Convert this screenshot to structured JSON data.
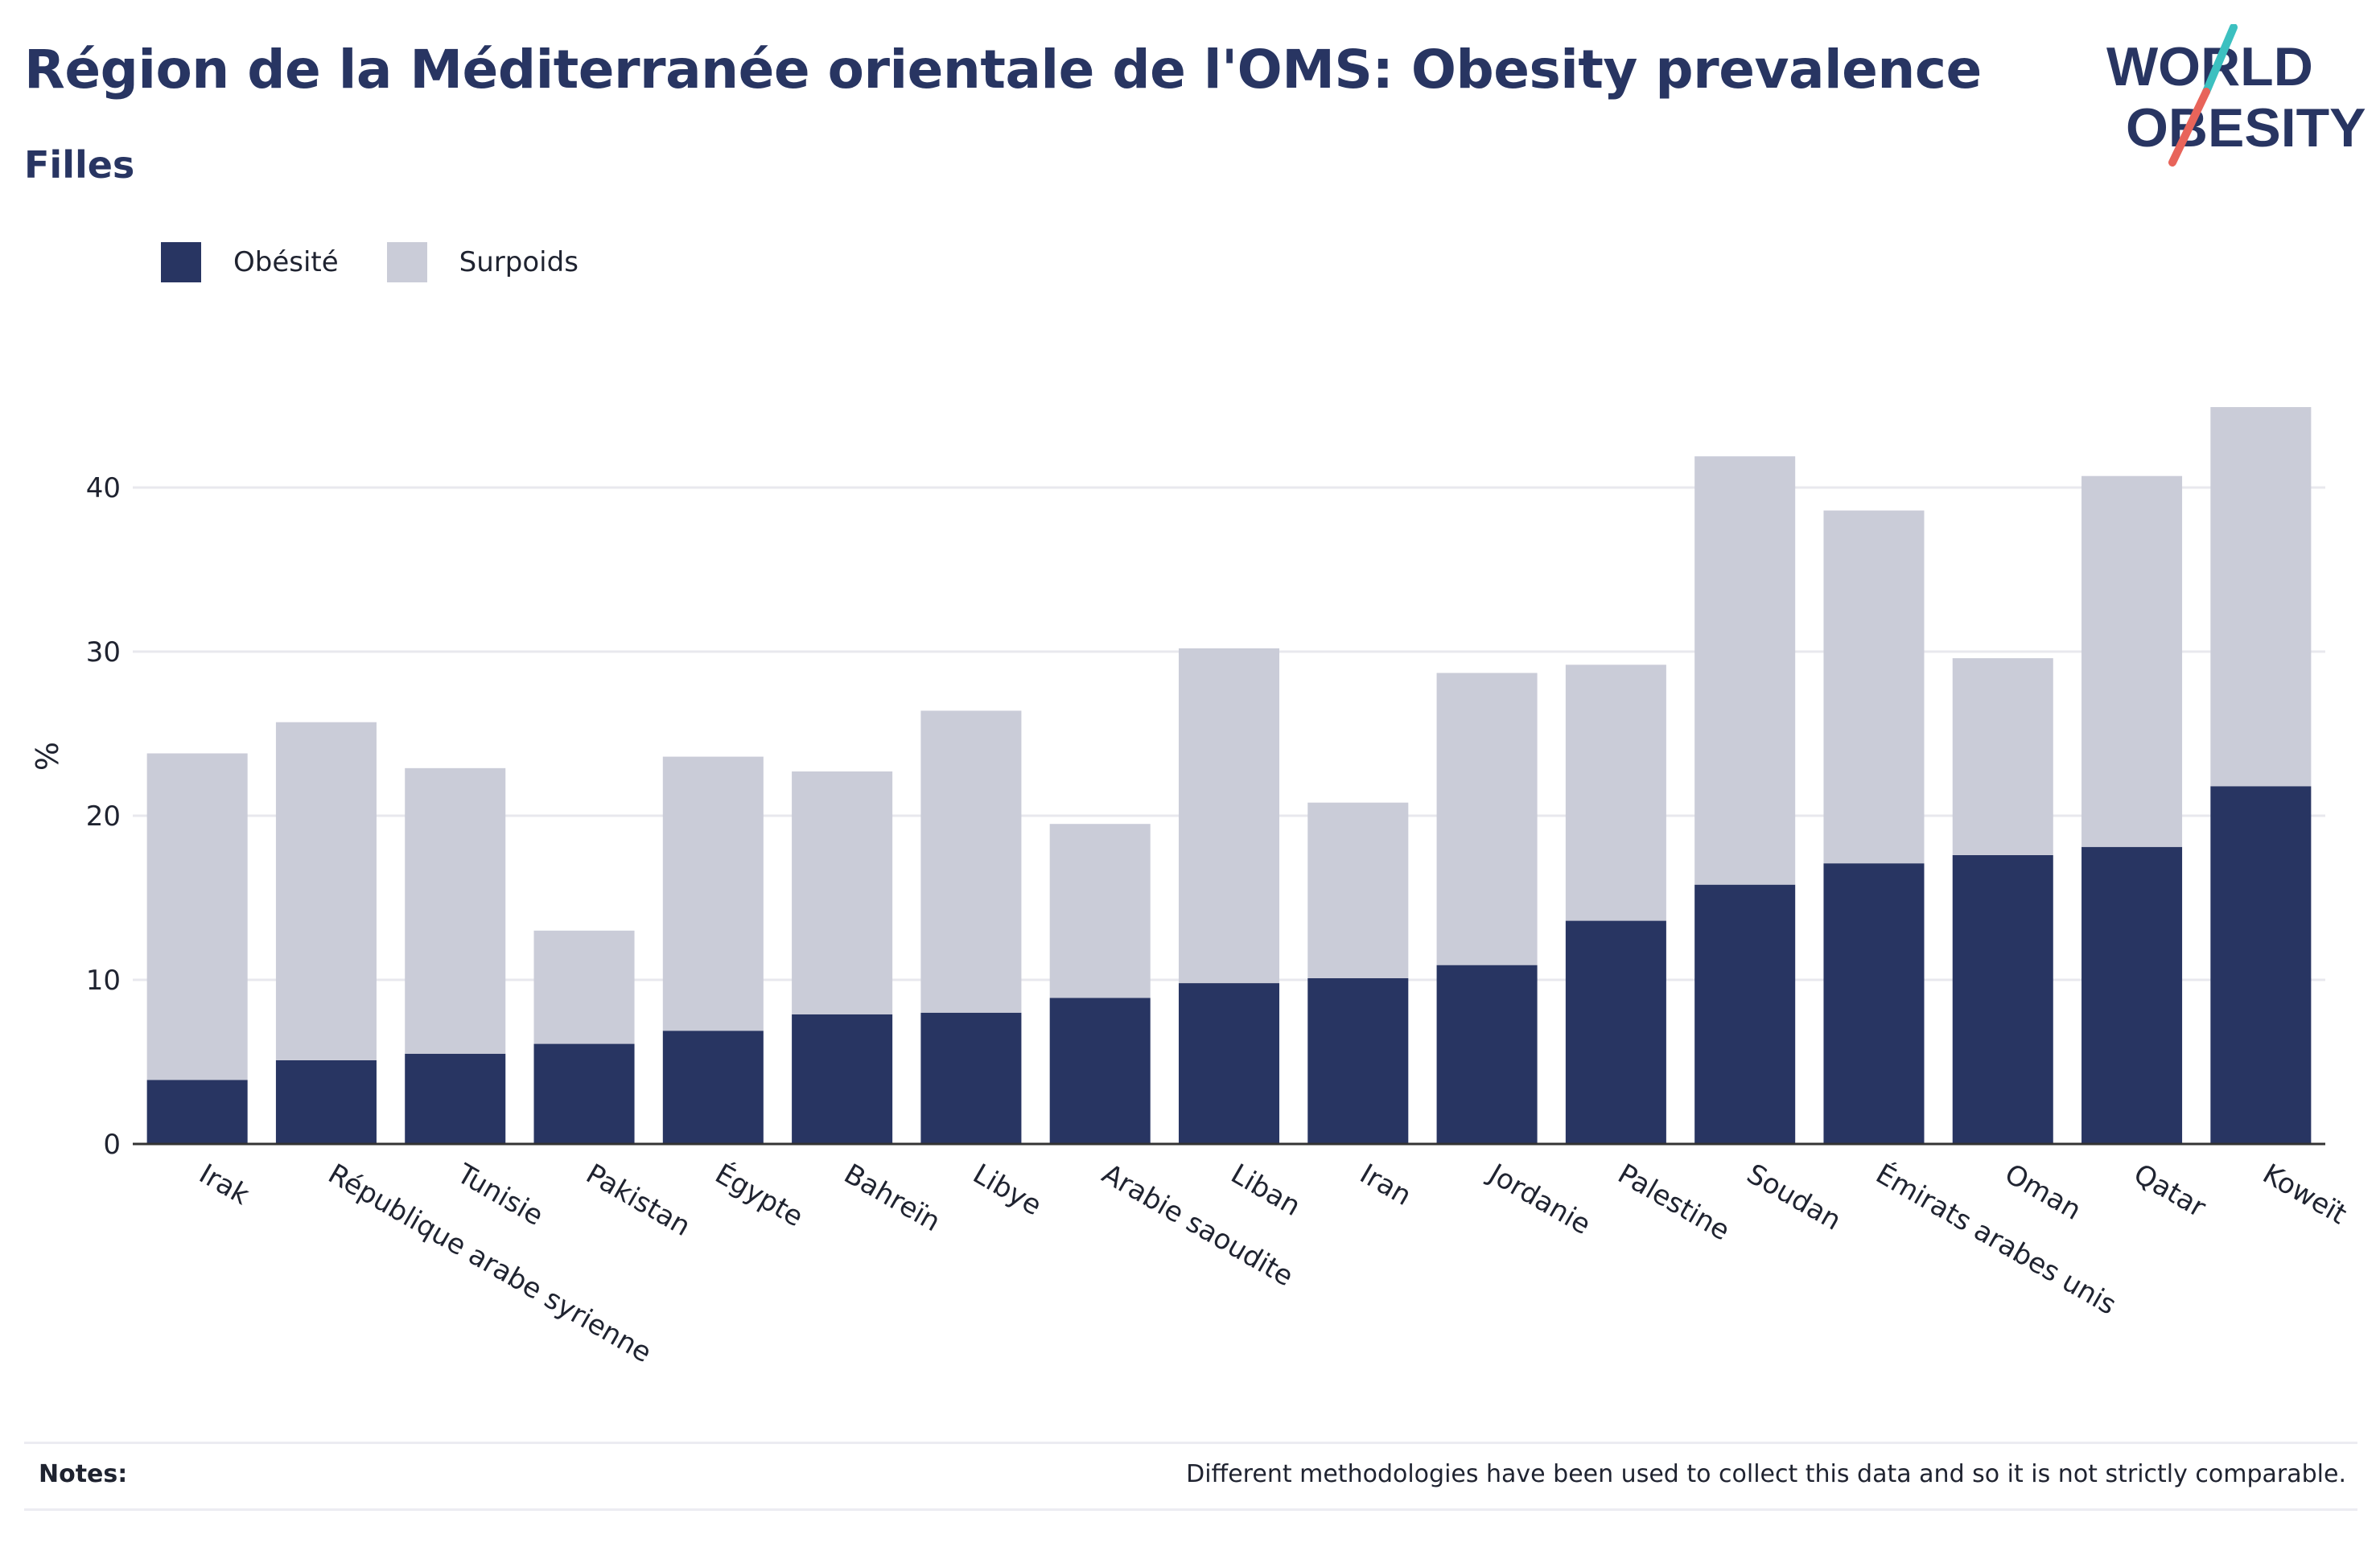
{
  "header": {
    "title": "Région de la Méditerranée orientale de l'OMS: Obesity prevalence",
    "subtitle": "Filles"
  },
  "logo": {
    "line1": "WORLD",
    "line2": "OBESITY"
  },
  "colors": {
    "obesity": "#283562",
    "overweight": "#caccd8",
    "grid": "#e8e8ee",
    "axis": "#333333",
    "text": "#1f2330",
    "logo_teal": "#3cc0c0",
    "logo_coral": "#e8645a"
  },
  "legend": [
    {
      "label": "Obésité",
      "color": "#283562"
    },
    {
      "label": "Surpoids",
      "color": "#caccd8"
    }
  ],
  "chart_data": {
    "type": "bar",
    "stacked": true,
    "categories": [
      "Irak",
      "République arabe syrienne",
      "Tunisie",
      "Pakistan",
      "Égypte",
      "Bahreïn",
      "Libye",
      "Arabie saoudite",
      "Liban",
      "Iran",
      "Jordanie",
      "Palestine",
      "Soudan",
      "Émirats arabes unis",
      "Oman",
      "Qatar",
      "Koweït"
    ],
    "series": [
      {
        "name": "Obésité",
        "values": [
          3.9,
          5.1,
          5.5,
          6.1,
          6.9,
          7.9,
          8.0,
          8.9,
          9.8,
          10.1,
          10.9,
          13.6,
          15.8,
          17.1,
          17.6,
          18.1,
          21.8
        ]
      },
      {
        "name": "Surpoids",
        "values": [
          19.9,
          20.6,
          17.4,
          6.9,
          16.7,
          14.8,
          18.4,
          10.6,
          20.4,
          10.7,
          17.8,
          15.6,
          26.1,
          21.5,
          12.0,
          22.6,
          23.1
        ]
      }
    ],
    "ylabel": "%",
    "ylim": [
      0,
      45
    ],
    "yticks": [
      "0",
      "10",
      "20",
      "30",
      "40"
    ],
    "grid": true,
    "legend_position": "top-left"
  },
  "footer": {
    "notes_label": "Notes:",
    "notes_text": "Different methodologies have been used to collect this data and so it is not strictly comparable."
  }
}
